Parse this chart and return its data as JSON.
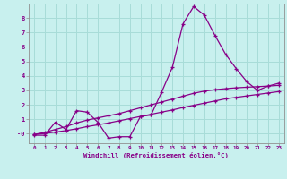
{
  "xlabel": "Windchill (Refroidissement éolien,°C)",
  "background_color": "#c8f0ee",
  "grid_color": "#a8dcd8",
  "line_color": "#880088",
  "xlim": [
    -0.5,
    23.5
  ],
  "ylim": [
    -0.65,
    9.0
  ],
  "yticks": [
    0,
    1,
    2,
    3,
    4,
    5,
    6,
    7,
    8
  ],
  "ytick_labels": [
    "-0",
    "1",
    "2",
    "3",
    "4",
    "5",
    "6",
    "7",
    "8"
  ],
  "xticks": [
    0,
    1,
    2,
    3,
    4,
    5,
    6,
    7,
    8,
    9,
    10,
    11,
    12,
    13,
    14,
    15,
    16,
    17,
    18,
    19,
    20,
    21,
    22,
    23
  ],
  "line1_x": [
    0,
    1,
    2,
    3,
    4,
    5,
    6,
    7,
    8,
    9,
    10,
    11,
    12,
    13,
    14,
    15,
    16,
    17,
    18,
    19,
    20,
    21,
    22,
    23
  ],
  "line1_y": [
    -0.1,
    -0.1,
    0.8,
    0.3,
    1.6,
    1.5,
    0.8,
    -0.3,
    -0.2,
    -0.2,
    1.2,
    1.3,
    2.9,
    4.6,
    7.6,
    8.8,
    8.2,
    6.8,
    5.5,
    4.5,
    3.6,
    3.0,
    3.3,
    3.5
  ],
  "line2_x": [
    0,
    1,
    2,
    3,
    4,
    5,
    6,
    7,
    8,
    9,
    10,
    11,
    12,
    13,
    14,
    15,
    16,
    17,
    18,
    19,
    20,
    21,
    22,
    23
  ],
  "line2_y": [
    -0.05,
    0.1,
    0.3,
    0.5,
    0.75,
    0.95,
    1.1,
    1.25,
    1.4,
    1.6,
    1.8,
    2.0,
    2.2,
    2.4,
    2.6,
    2.8,
    2.95,
    3.05,
    3.12,
    3.18,
    3.22,
    3.26,
    3.3,
    3.35
  ],
  "line3_x": [
    0,
    1,
    2,
    3,
    4,
    5,
    6,
    7,
    8,
    9,
    10,
    11,
    12,
    13,
    14,
    15,
    16,
    17,
    18,
    19,
    20,
    21,
    22,
    23
  ],
  "line3_y": [
    -0.05,
    0.02,
    0.12,
    0.22,
    0.35,
    0.5,
    0.62,
    0.75,
    0.9,
    1.05,
    1.2,
    1.35,
    1.5,
    1.65,
    1.82,
    1.97,
    2.12,
    2.27,
    2.42,
    2.52,
    2.62,
    2.72,
    2.82,
    2.92
  ]
}
